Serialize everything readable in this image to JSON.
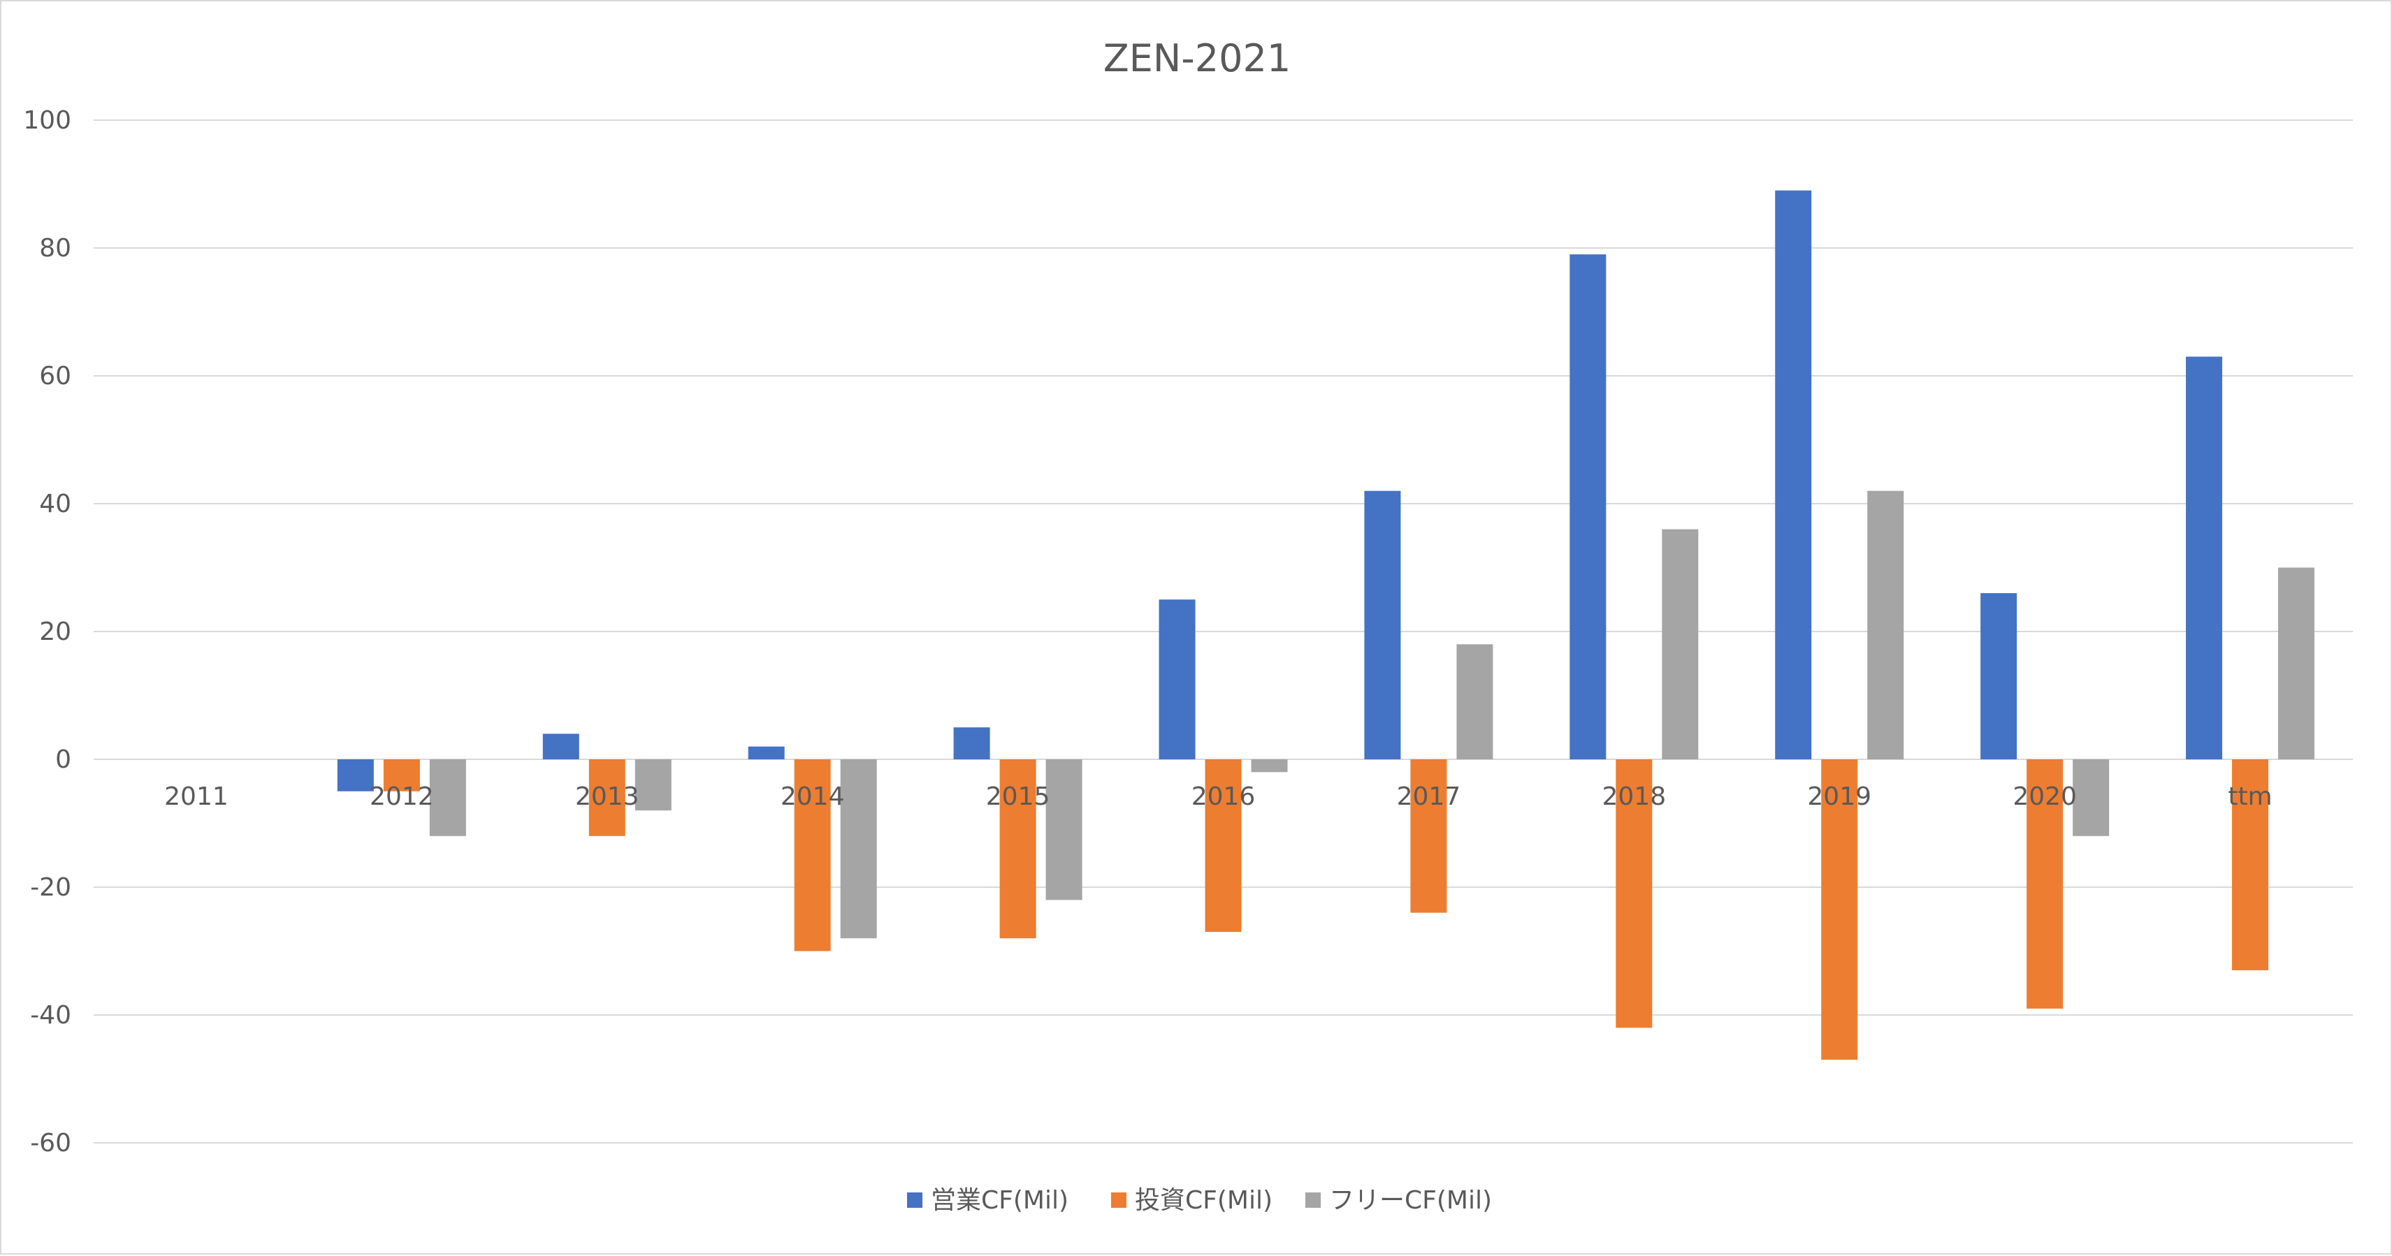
{
  "chart_data": {
    "type": "bar",
    "title": "ZEN-2021",
    "xlabel": "",
    "ylabel": "",
    "categories": [
      "2011",
      "2012",
      "2013",
      "2014",
      "2015",
      "2016",
      "2017",
      "2018",
      "2019",
      "2020",
      "ttm"
    ],
    "ylim": [
      -60,
      100
    ],
    "yticks": [
      100,
      80,
      60,
      40,
      20,
      0,
      -20,
      -40,
      -60
    ],
    "grid": true,
    "legend_position": "bottom",
    "series": [
      {
        "name": "営業CF(Mil)",
        "color": "#4472c4",
        "values": [
          null,
          -5,
          4,
          2,
          5,
          25,
          42,
          79,
          89,
          26,
          63
        ]
      },
      {
        "name": "投資CF(Mil)",
        "color": "#ed7d31",
        "values": [
          null,
          -5,
          -12,
          -30,
          -28,
          -27,
          -24,
          -42,
          -47,
          -39,
          -33
        ]
      },
      {
        "name": "フリーCF(Mil)",
        "color": "#a5a5a5",
        "values": [
          null,
          -12,
          -8,
          -28,
          -22,
          -2,
          18,
          36,
          42,
          -12,
          30
        ]
      }
    ]
  }
}
